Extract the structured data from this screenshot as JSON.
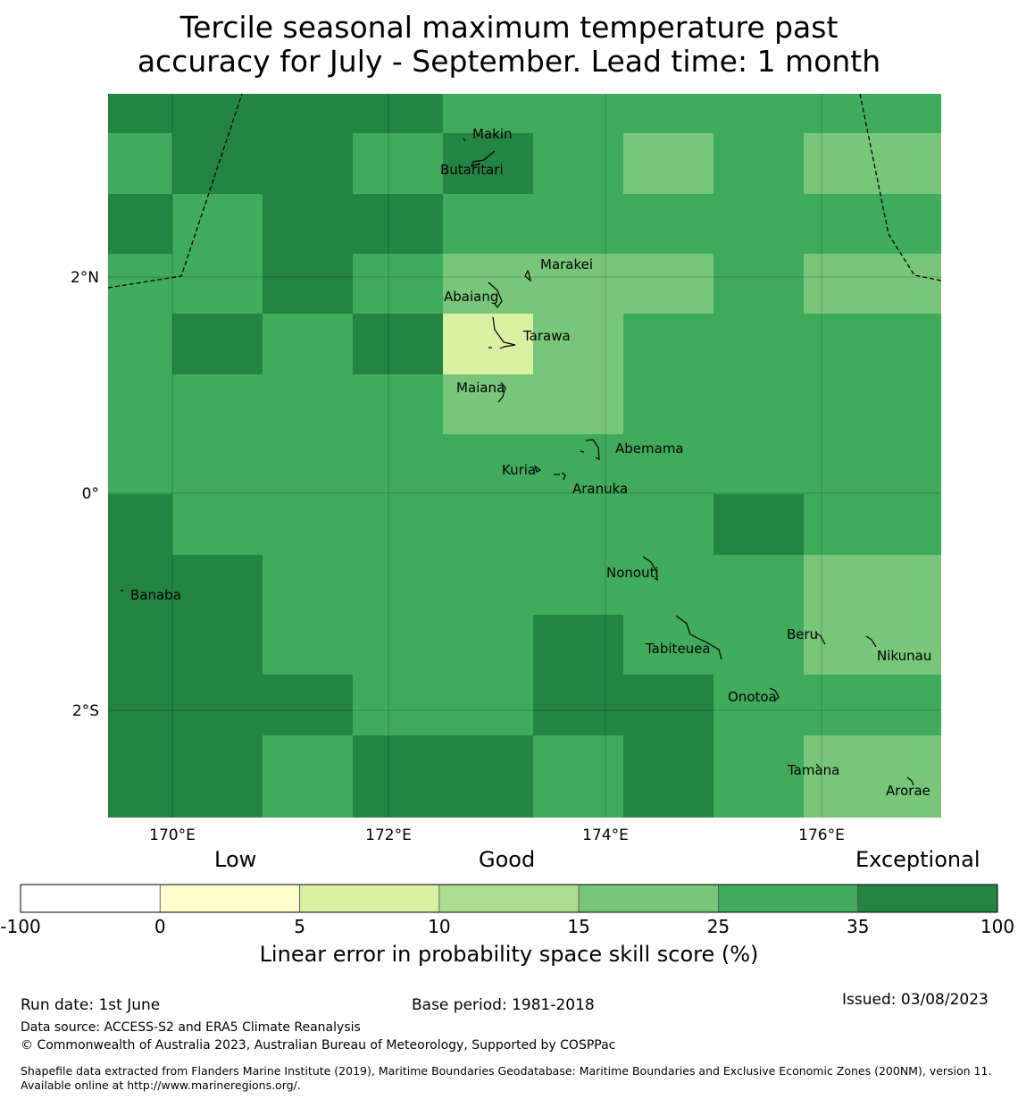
{
  "title": {
    "line1": "Tercile seasonal maximum temperature past",
    "line2": "accuracy for July - September. Lead time: 1 month"
  },
  "map": {
    "x_ticks": [
      "170°E",
      "172°E",
      "174°E",
      "176°E"
    ],
    "y_ticks": [
      "2°N",
      "0°",
      "2°S"
    ],
    "islands": [
      "Makin",
      "Butaritari",
      "Marakei",
      "Abaiang",
      "Tarawa",
      "Maiana",
      "Abemama",
      "Kuria",
      "Aranuka",
      "Nonouti",
      "Banaba",
      "Tabiteuea",
      "Beru",
      "Nikunau",
      "Onotoa",
      "Tamana",
      "Arorae"
    ],
    "grid_cols": 9,
    "grid_rows": 12,
    "cells": [
      [
        6,
        6,
        6,
        6,
        5,
        5,
        5,
        5,
        5
      ],
      [
        5,
        6,
        6,
        5,
        6,
        5,
        4,
        5,
        4
      ],
      [
        6,
        5,
        6,
        6,
        5,
        5,
        5,
        5,
        5
      ],
      [
        5,
        5,
        6,
        5,
        4,
        4,
        4,
        5,
        4
      ],
      [
        5,
        6,
        5,
        6,
        2,
        4,
        5,
        5,
        5
      ],
      [
        5,
        5,
        5,
        5,
        4,
        4,
        5,
        5,
        5
      ],
      [
        5,
        5,
        5,
        5,
        5,
        5,
        5,
        5,
        5
      ],
      [
        6,
        5,
        5,
        5,
        5,
        5,
        5,
        6,
        5
      ],
      [
        6,
        6,
        5,
        5,
        5,
        5,
        5,
        5,
        4
      ],
      [
        6,
        6,
        5,
        5,
        5,
        6,
        5,
        5,
        4
      ],
      [
        6,
        6,
        6,
        5,
        5,
        6,
        6,
        5,
        5
      ],
      [
        6,
        6,
        5,
        6,
        6,
        5,
        6,
        5,
        4
      ]
    ]
  },
  "colorbar": {
    "category_labels": [
      "Low",
      "Good",
      "Exceptional"
    ],
    "bins": [
      {
        "label": "-100",
        "color": "#ffffff"
      },
      {
        "label": "0",
        "color": "#ffffcc"
      },
      {
        "label": "5",
        "color": "#d9f0a3"
      },
      {
        "label": "10",
        "color": "#addd8e"
      },
      {
        "label": "15",
        "color": "#78c679"
      },
      {
        "label": "25",
        "color": "#41ab5d"
      },
      {
        "label": "35",
        "color": "#238443"
      }
    ],
    "end_label": "100",
    "axis_label": "Linear error in probability space skill score (%)"
  },
  "footer": {
    "run_date": "Run date: 1st June",
    "base_period": "Base period: 1981-2018",
    "issued": "Issued: 03/08/2023",
    "data_source": "Data source: ACCESS-S2 and ERA5 Climate Reanalysis",
    "copyright": "© Commonwealth of Australia 2023, Australian Bureau of Meteorology, Supported by COSPPac",
    "shapefile": "Shapefile data extracted from Flanders Marine Institute (2019), Maritime Boundaries Geodatabase: Maritime Boundaries and Exclusive Economic Zones (200NM), version 11. Available online at http://www.marineregions.org/."
  }
}
